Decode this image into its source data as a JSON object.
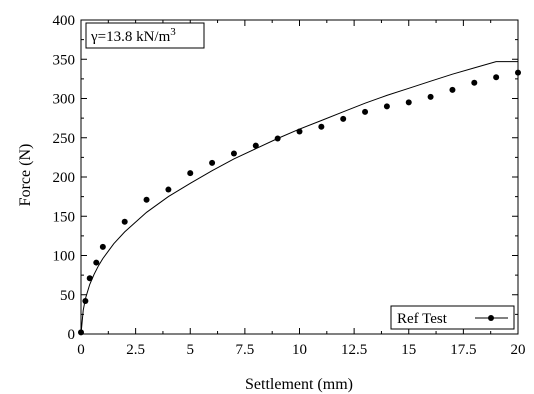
{
  "chart_data": {
    "type": "scatter",
    "xlabel": "Settlement (mm)",
    "ylabel": "Force (N)",
    "xlim": [
      0,
      20
    ],
    "ylim": [
      0,
      400
    ],
    "xticks": [
      "0",
      "2.5",
      "5",
      "7.5",
      "10",
      "12.5",
      "15",
      "17.5",
      "20"
    ],
    "yticks": [
      "0",
      "50",
      "100",
      "150",
      "200",
      "250",
      "300",
      "350",
      "400"
    ],
    "grid": false,
    "legend_position": "bottom-right",
    "annotation": {
      "gamma": "γ",
      "equals": "=13.8 kN/m",
      "superscript": "3"
    },
    "series": [
      {
        "name": "Ref Test",
        "marker": "dot-with-line",
        "color": "#000000",
        "x": [
          0,
          0.2,
          0.4,
          0.7,
          1,
          2,
          3,
          4,
          5,
          6,
          7,
          8,
          9,
          10,
          11,
          12,
          13,
          14,
          15,
          16,
          17,
          18,
          19,
          20
        ],
        "y": [
          2,
          42,
          71,
          91,
          111,
          143,
          171,
          184,
          205,
          218,
          230,
          240,
          249,
          258,
          264,
          274,
          283,
          290,
          295,
          302,
          311,
          320,
          327,
          333
        ]
      },
      {
        "type": "line",
        "color": "#000000",
        "x": [
          0,
          0.1,
          0.2,
          0.4,
          0.6,
          0.8,
          1,
          1.5,
          2,
          3,
          4,
          5,
          6,
          7,
          8,
          9,
          10,
          11,
          12,
          13,
          14,
          15,
          16,
          17,
          18,
          19,
          20
        ],
        "y": [
          0,
          30,
          45,
          63,
          76,
          87,
          96,
          115,
          130,
          155,
          175,
          192,
          208,
          223,
          236,
          249,
          261,
          272,
          283,
          294,
          304,
          313,
          322,
          331,
          339,
          347,
          347
        ]
      }
    ]
  }
}
